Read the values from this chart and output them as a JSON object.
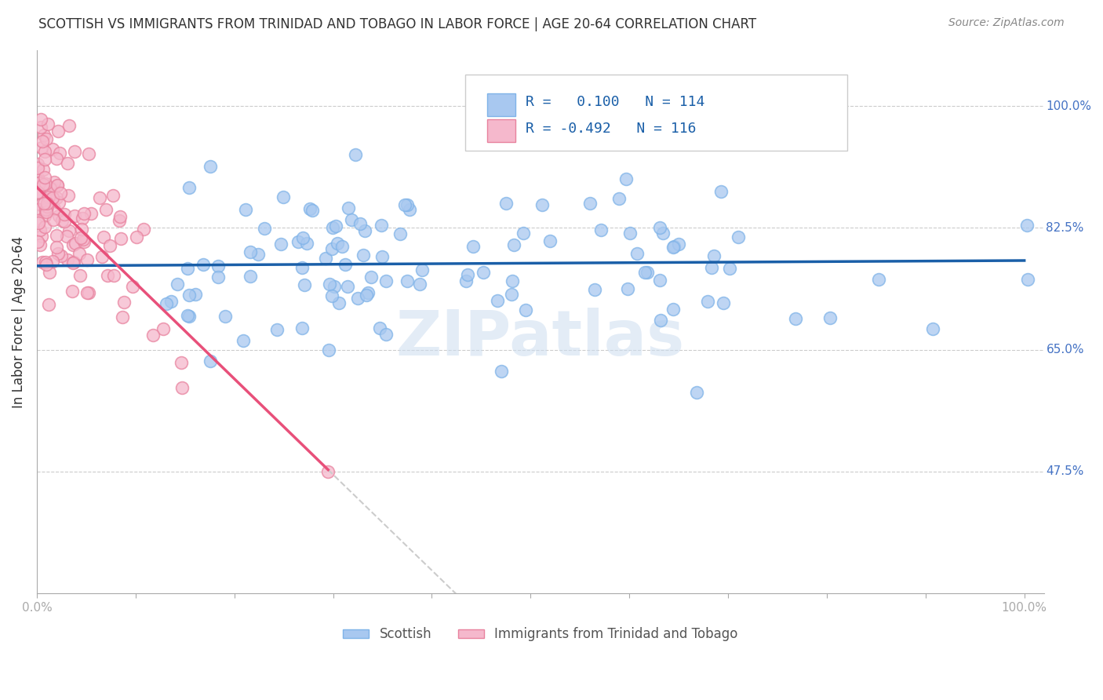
{
  "title": "SCOTTISH VS IMMIGRANTS FROM TRINIDAD AND TOBAGO IN LABOR FORCE | AGE 20-64 CORRELATION CHART",
  "source": "Source: ZipAtlas.com",
  "ylabel": "In Labor Force | Age 20-64",
  "xlim": [
    0.0,
    1.02
  ],
  "ylim": [
    0.3,
    1.08
  ],
  "xticks": [
    0.0,
    0.1,
    0.2,
    0.3,
    0.4,
    0.5,
    0.6,
    0.7,
    0.8,
    0.9,
    1.0
  ],
  "xticklabels": [
    "0.0%",
    "",
    "",
    "",
    "",
    "",
    "",
    "",
    "",
    "",
    "100.0%"
  ],
  "ytick_positions": [
    0.475,
    0.65,
    0.825,
    1.0
  ],
  "ytick_labels": [
    "47.5%",
    "65.0%",
    "82.5%",
    "100.0%"
  ],
  "scottish_R": 0.1,
  "scottish_N": 114,
  "tt_R": -0.492,
  "tt_N": 116,
  "scottish_face_color": "#a8c8f0",
  "scottish_edge_color": "#7fb3e8",
  "tt_face_color": "#f5b8cc",
  "tt_edge_color": "#e8829e",
  "scottish_line_color": "#1a5fa8",
  "tt_line_color": "#e8507a",
  "tt_line_ext_color": "#cccccc",
  "watermark": "ZIPatlas",
  "legend_label_scottish": "Scottish",
  "legend_label_tt": "Immigrants from Trinidad and Tobago",
  "legend_R1_text": "R =   0.100   N = 114",
  "legend_R2_text": "R = -0.492   N = 116"
}
